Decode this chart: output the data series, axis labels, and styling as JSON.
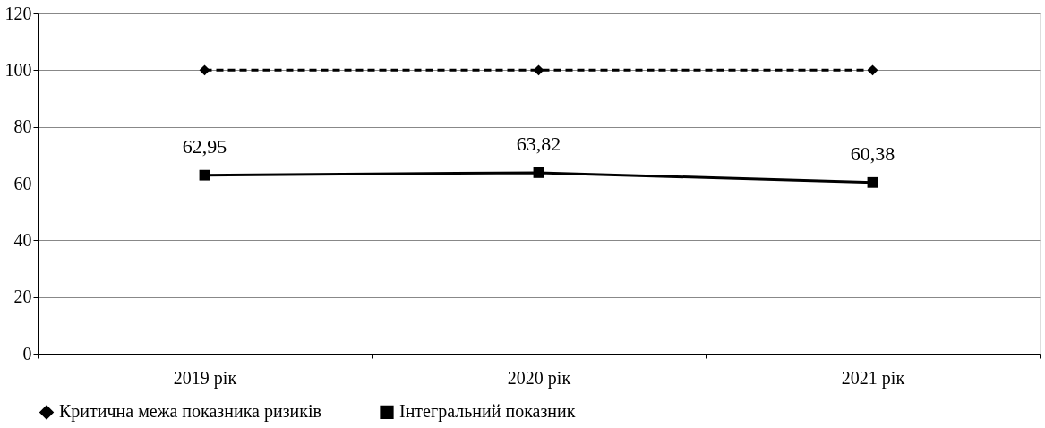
{
  "chart_data": {
    "type": "line",
    "categories": [
      "2019 рік",
      "2020 рік",
      "2021 рік"
    ],
    "series": [
      {
        "name": "Критична межа показника ризиків",
        "color": "#000000",
        "values": [
          100,
          100,
          100
        ],
        "marker": "diamond",
        "line_style": "dashed"
      },
      {
        "name": "Інтегральний показник",
        "color": "#000000",
        "values": [
          62.95,
          63.82,
          60.38
        ],
        "marker": "square",
        "line_style": "solid",
        "value_labels": [
          "62,95",
          "63,82",
          "60,38"
        ]
      }
    ],
    "ylim": [
      0,
      120
    ],
    "yticks": [
      0,
      20,
      40,
      60,
      80,
      100,
      120
    ],
    "grid": "y",
    "legend": "bottom"
  }
}
